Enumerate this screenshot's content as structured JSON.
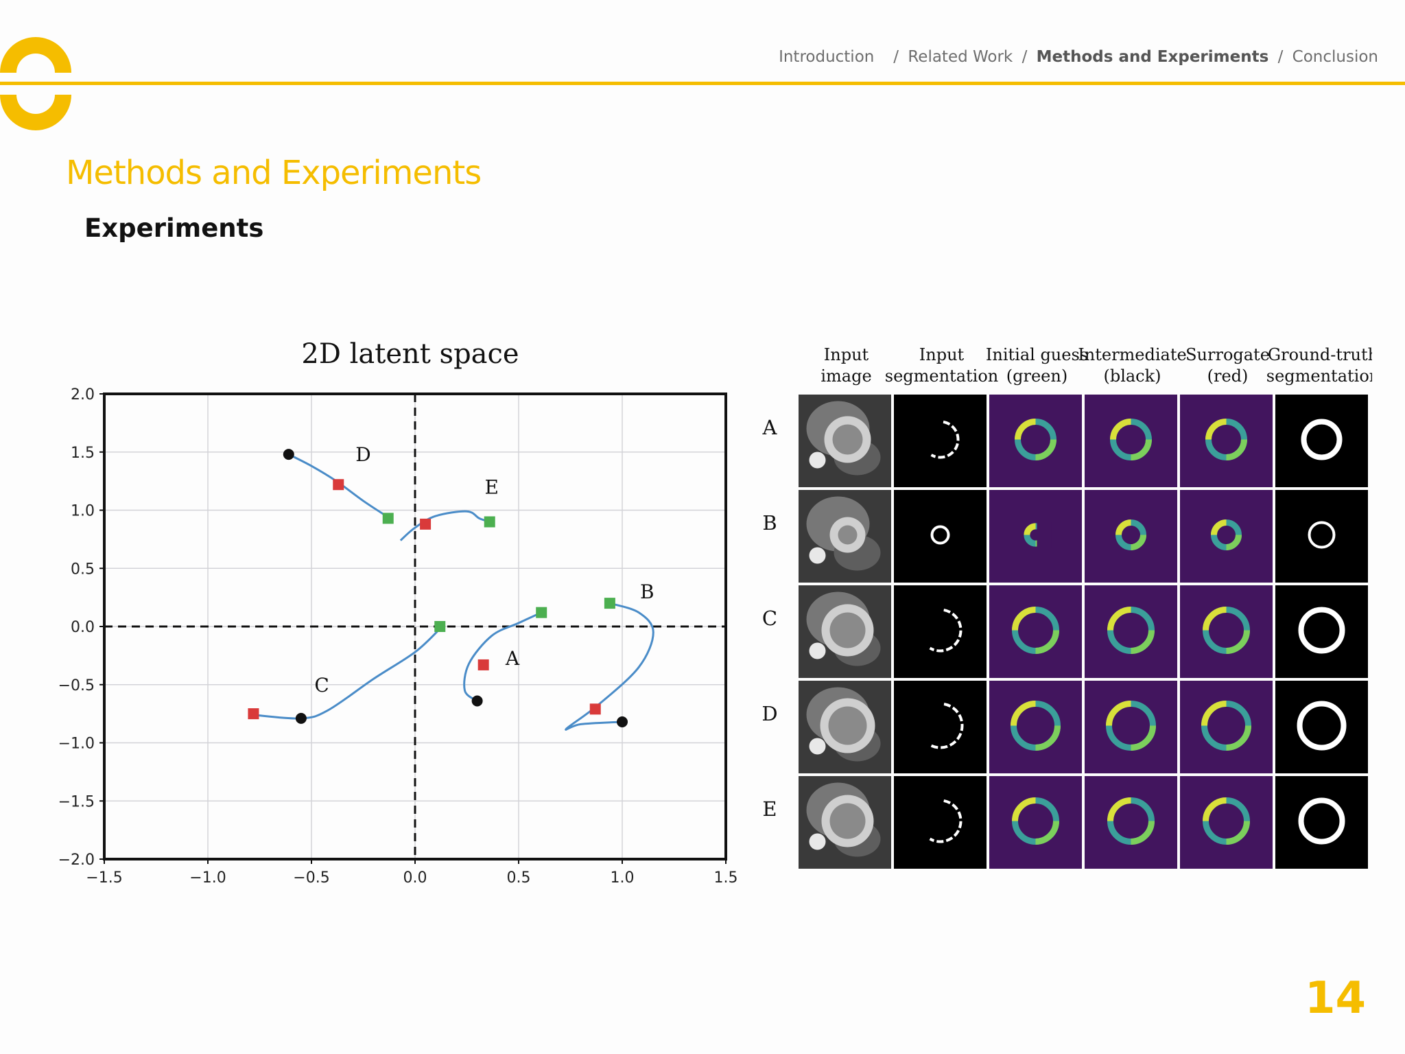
{
  "nav": {
    "items": [
      {
        "label": "Introduction",
        "active": false
      },
      {
        "label": "Related Work",
        "active": false
      },
      {
        "label": "Methods and Experiments",
        "active": true
      },
      {
        "label": "Conclusion",
        "active": false
      }
    ]
  },
  "slide": {
    "title": "Methods and Experiments",
    "subtitle": "Experiments",
    "page_number": "14"
  },
  "colors": {
    "accent": "#f5bd00",
    "line": "#4a8cc8",
    "start": "#111111",
    "intermediate": "#d93a3a",
    "end": "#4caf50",
    "purple": "#42155e"
  },
  "chart_data": [
    {
      "type": "line",
      "title": "2D latent space",
      "xlim": [
        -1.5,
        1.5
      ],
      "ylim": [
        -2.0,
        2.0
      ],
      "xticks": [
        "−1.5",
        "−1.0",
        "−0.5",
        "0.0",
        "0.5",
        "1.0",
        "1.5"
      ],
      "yticks": [
        "2.0",
        "1.5",
        "1.0",
        "0.5",
        "0.0",
        "−0.5",
        "−1.0",
        "−1.5",
        "−2.0"
      ],
      "grid": true,
      "series": [
        {
          "name": "D",
          "points": [
            [
              -0.61,
              1.48
            ],
            [
              -0.5,
              1.38
            ],
            [
              -0.38,
              1.25
            ],
            [
              -0.25,
              1.08
            ],
            [
              -0.13,
              0.94
            ]
          ],
          "start": [
            -0.61,
            1.48
          ],
          "intermediate": [
            -0.37,
            1.22
          ],
          "end": [
            -0.13,
            0.93
          ]
        },
        {
          "name": "E",
          "points": [
            [
              -0.07,
              0.74
            ],
            [
              0.0,
              0.85
            ],
            [
              0.1,
              0.95
            ],
            [
              0.25,
              0.99
            ],
            [
              0.31,
              0.93
            ],
            [
              0.36,
              0.9
            ]
          ],
          "start": null,
          "intermediate": [
            0.05,
            0.88
          ],
          "end": [
            0.36,
            0.9
          ]
        },
        {
          "name": "C",
          "points": [
            [
              -0.78,
              -0.76
            ],
            [
              -0.55,
              -0.79
            ],
            [
              -0.42,
              -0.72
            ],
            [
              -0.2,
              -0.45
            ],
            [
              0.0,
              -0.22
            ],
            [
              0.12,
              -0.02
            ]
          ],
          "start": [
            -0.55,
            -0.79
          ],
          "intermediate": [
            -0.78,
            -0.75
          ],
          "end": [
            0.12,
            0.0
          ]
        },
        {
          "name": "A",
          "points": [
            [
              0.3,
              -0.64
            ],
            [
              0.24,
              -0.55
            ],
            [
              0.26,
              -0.32
            ],
            [
              0.37,
              -0.08
            ],
            [
              0.5,
              0.03
            ],
            [
              0.61,
              0.12
            ]
          ],
          "start": [
            0.3,
            -0.64
          ],
          "intermediate": [
            0.33,
            -0.33
          ],
          "end": [
            0.61,
            0.12
          ]
        },
        {
          "name": "B",
          "points": [
            [
              1.0,
              -0.82
            ],
            [
              0.8,
              -0.84
            ],
            [
              0.73,
              -0.88
            ],
            [
              0.88,
              -0.68
            ],
            [
              1.08,
              -0.35
            ],
            [
              1.15,
              -0.05
            ],
            [
              1.08,
              0.12
            ],
            [
              0.94,
              0.2
            ]
          ],
          "start": [
            1.0,
            -0.82
          ],
          "intermediate": [
            0.87,
            -0.71
          ],
          "end": [
            0.94,
            0.2
          ]
        }
      ],
      "labels": [
        {
          "text": "D",
          "x": -0.25,
          "y": 1.48
        },
        {
          "text": "E",
          "x": 0.37,
          "y": 1.2
        },
        {
          "text": "B",
          "x": 1.12,
          "y": 0.3
        },
        {
          "text": "A",
          "x": 0.47,
          "y": -0.27
        },
        {
          "text": "C",
          "x": -0.45,
          "y": -0.5
        }
      ]
    },
    {
      "type": "table",
      "columns": [
        "Input image",
        "Input segmentation",
        "Initial guess (green)",
        "Intermediate (black)",
        "Surrogate (red)",
        "Ground-truth segmentation"
      ],
      "rows": [
        "A",
        "B",
        "C",
        "D",
        "E"
      ]
    }
  ]
}
